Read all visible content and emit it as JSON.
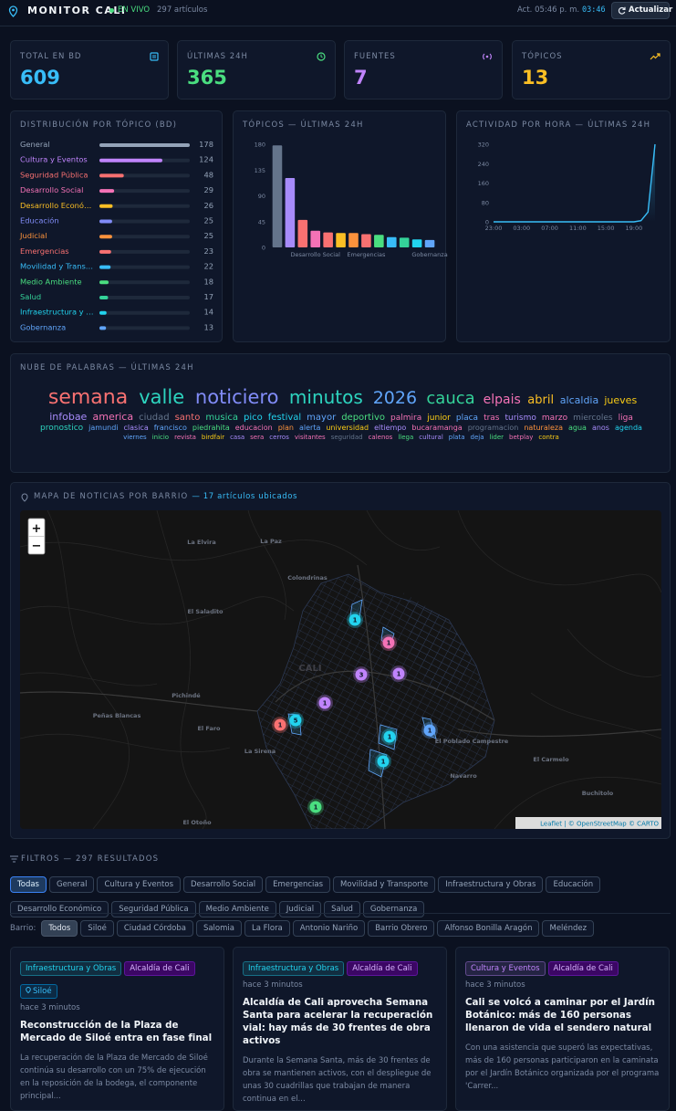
{
  "header": {
    "title": "MONITOR CALI",
    "live": "EN VIVO",
    "count": "297 artículos",
    "updated": "Act. 05:46 p. m.",
    "timer": "03:46",
    "refresh": "Actualizar"
  },
  "kpis": [
    {
      "label": "TOTAL EN BD",
      "value": 609,
      "color": "#38bdf8"
    },
    {
      "label": "ÚLTIMAS 24H",
      "value": 365,
      "color": "#4ade80"
    },
    {
      "label": "FUENTES",
      "value": 7,
      "color": "#c084fc"
    },
    {
      "label": "TÓPICOS",
      "value": 13,
      "color": "#fbbf24"
    }
  ],
  "chart_data": [
    {
      "type": "hbar",
      "title": "DISTRIBUCIÓN POR TÓPICO (BD)",
      "categories": [
        "General",
        "Cultura y Eventos",
        "Seguridad Pública",
        "Desarrollo Social",
        "Desarrollo Econó…",
        "Educación",
        "Judicial",
        "Emergencias",
        "Movilidad y Trans…",
        "Medio Ambiente",
        "Salud",
        "Infraestructura y …",
        "Gobernanza"
      ],
      "values": [
        178,
        124,
        48,
        29,
        26,
        25,
        25,
        23,
        22,
        18,
        17,
        14,
        13
      ],
      "colors": [
        "#94a3b8",
        "#c084fc",
        "#f87171",
        "#f472b6",
        "#fbbf24",
        "#818cf8",
        "#fb923c",
        "#f87171",
        "#38bdf8",
        "#4ade80",
        "#34d399",
        "#22d3ee",
        "#60a5fa"
      ]
    },
    {
      "type": "bar",
      "title": "TÓPICOS — ÚLTIMAS 24H",
      "categories": [
        null,
        null,
        null,
        "Desarrollo Social",
        null,
        null,
        null,
        "Emergencias",
        null,
        null,
        null,
        null,
        "Gobernanza"
      ],
      "values": [
        178,
        121,
        48,
        29,
        26,
        25,
        25,
        23,
        22,
        18,
        17,
        14,
        13
      ],
      "colors": [
        "#64748b",
        "#a78bfa",
        "#f87171",
        "#f472b6",
        "#f87171",
        "#fbbf24",
        "#fb923c",
        "#f87171",
        "#4ade80",
        "#38bdf8",
        "#34d399",
        "#22d3ee",
        "#60a5fa"
      ],
      "ylim": [
        0,
        180
      ],
      "yticks": [
        0,
        45,
        90,
        135,
        180
      ]
    },
    {
      "type": "line",
      "title": "ACTIVIDAD POR HORA — ÚLTIMAS 24H",
      "categories": [
        "23:00",
        null,
        null,
        null,
        "03:00",
        null,
        null,
        null,
        "07:00",
        null,
        null,
        null,
        "11:00",
        null,
        null,
        null,
        "15:00",
        null,
        null,
        null,
        "19:00",
        null,
        null,
        null
      ],
      "values": [
        0,
        0,
        0,
        0,
        0,
        0,
        0,
        0,
        0,
        0,
        0,
        0,
        0,
        0,
        0,
        0,
        0,
        0,
        0,
        0,
        0,
        5,
        40,
        320
      ],
      "color": "#38bdf8",
      "ylim": [
        0,
        320
      ],
      "yticks": [
        0,
        80,
        160,
        240,
        320
      ]
    },
    {
      "type": "wordcloud",
      "title": "NUBE DE PALABRAS — ÚLTIMAS 24H",
      "words": [
        {
          "text": "semana",
          "color": "#f87171",
          "weight": 22
        },
        {
          "text": "valle",
          "color": "#2dd4bf",
          "weight": 21
        },
        {
          "text": "noticiero",
          "color": "#818cf8",
          "weight": 21
        },
        {
          "text": "minutos",
          "color": "#2dd4bf",
          "weight": 20
        },
        {
          "text": "2026",
          "color": "#60a5fa",
          "weight": 19
        },
        {
          "text": "cauca",
          "color": "#34d399",
          "weight": 18
        },
        {
          "text": "elpais",
          "color": "#f472b6",
          "weight": 14
        },
        {
          "text": "abril",
          "color": "#fbbf24",
          "weight": 13
        },
        {
          "text": "alcaldia",
          "color": "#60a5fa",
          "weight": 11
        },
        {
          "text": "jueves",
          "color": "#facc15",
          "weight": 11
        },
        {
          "text": "infobae",
          "color": "#a78bfa",
          "weight": 11
        },
        {
          "text": "america",
          "color": "#f472b6",
          "weight": 11
        },
        {
          "text": "ciudad",
          "color": "#64748b",
          "weight": 10
        },
        {
          "text": "santo",
          "color": "#f87171",
          "weight": 10
        },
        {
          "text": "musica",
          "color": "#34d399",
          "weight": 10
        },
        {
          "text": "pico",
          "color": "#22d3ee",
          "weight": 10
        },
        {
          "text": "festival",
          "color": "#22d3ee",
          "weight": 10
        },
        {
          "text": "mayor",
          "color": "#60a5fa",
          "weight": 10
        },
        {
          "text": "deportivo",
          "color": "#4ade80",
          "weight": 10
        },
        {
          "text": "palmira",
          "color": "#f472b6",
          "weight": 9
        },
        {
          "text": "junior",
          "color": "#facc15",
          "weight": 9
        },
        {
          "text": "placa",
          "color": "#60a5fa",
          "weight": 9
        },
        {
          "text": "tras",
          "color": "#f472b6",
          "weight": 9
        },
        {
          "text": "turismo",
          "color": "#a78bfa",
          "weight": 9
        },
        {
          "text": "marzo",
          "color": "#f472b6",
          "weight": 9
        },
        {
          "text": "miercoles",
          "color": "#64748b",
          "weight": 9
        },
        {
          "text": "liga",
          "color": "#f472b6",
          "weight": 9
        },
        {
          "text": "pronostico",
          "color": "#2dd4bf",
          "weight": 9
        },
        {
          "text": "jamundi",
          "color": "#60a5fa",
          "weight": 8
        },
        {
          "text": "clasica",
          "color": "#a78bfa",
          "weight": 8
        },
        {
          "text": "francisco",
          "color": "#60a5fa",
          "weight": 8
        },
        {
          "text": "piedrahita",
          "color": "#4ade80",
          "weight": 8
        },
        {
          "text": "educacion",
          "color": "#f472b6",
          "weight": 8
        },
        {
          "text": "plan",
          "color": "#fb923c",
          "weight": 8
        },
        {
          "text": "alerta",
          "color": "#60a5fa",
          "weight": 8
        },
        {
          "text": "universidad",
          "color": "#facc15",
          "weight": 8
        },
        {
          "text": "eltiempo",
          "color": "#a78bfa",
          "weight": 8
        },
        {
          "text": "bucaramanga",
          "color": "#f472b6",
          "weight": 8
        },
        {
          "text": "programacion",
          "color": "#64748b",
          "weight": 8
        },
        {
          "text": "naturaleza",
          "color": "#fb923c",
          "weight": 8
        },
        {
          "text": "agua",
          "color": "#4ade80",
          "weight": 8
        },
        {
          "text": "anos",
          "color": "#a78bfa",
          "weight": 8
        },
        {
          "text": "agenda",
          "color": "#22d3ee",
          "weight": 8
        },
        {
          "text": "viernes",
          "color": "#60a5fa",
          "weight": 7
        },
        {
          "text": "inicio",
          "color": "#4ade80",
          "weight": 7
        },
        {
          "text": "revista",
          "color": "#f472b6",
          "weight": 7
        },
        {
          "text": "birdfair",
          "color": "#facc15",
          "weight": 7
        },
        {
          "text": "casa",
          "color": "#a78bfa",
          "weight": 7
        },
        {
          "text": "sera",
          "color": "#f472b6",
          "weight": 7
        },
        {
          "text": "cerros",
          "color": "#a78bfa",
          "weight": 7
        },
        {
          "text": "visitantes",
          "color": "#f472b6",
          "weight": 7
        },
        {
          "text": "seguridad",
          "color": "#64748b",
          "weight": 7
        },
        {
          "text": "calenos",
          "color": "#f472b6",
          "weight": 7
        },
        {
          "text": "llega",
          "color": "#4ade80",
          "weight": 7
        },
        {
          "text": "cultural",
          "color": "#a78bfa",
          "weight": 7
        },
        {
          "text": "plata",
          "color": "#60a5fa",
          "weight": 7
        },
        {
          "text": "deja",
          "color": "#60a5fa",
          "weight": 7
        },
        {
          "text": "lider",
          "color": "#4ade80",
          "weight": 7
        },
        {
          "text": "betplay",
          "color": "#f472b6",
          "weight": 7
        },
        {
          "text": "contra",
          "color": "#facc15",
          "weight": 7
        }
      ]
    }
  ],
  "map": {
    "title": "MAPA DE NOTICIAS POR BARRIO",
    "subtitle": "— 17 artículos ubicados",
    "zoom_in": "+",
    "zoom_out": "−",
    "attribution": "Leaflet | © OpenStreetMap © CARTO",
    "places": [
      "La Elvira",
      "La Paz",
      "Colondrinas",
      "El Saladito",
      "CALI",
      "Pichindé",
      "Peñas Blancas",
      "El Faro",
      "La Sirena",
      "El Poblado Campestre",
      "El Carmelo",
      "Navarro",
      "Buchitolo",
      "El Otoño"
    ],
    "markers": [
      {
        "count": 1,
        "color": "#22d3ee"
      },
      {
        "count": 1,
        "color": "#f472b6"
      },
      {
        "count": 3,
        "color": "#c084fc"
      },
      {
        "count": 1,
        "color": "#c084fc"
      },
      {
        "count": 1,
        "color": "#c084fc"
      },
      {
        "count": 1,
        "color": "#f87171"
      },
      {
        "count": 5,
        "color": "#22d3ee"
      },
      {
        "count": 1,
        "color": "#60a5fa"
      },
      {
        "count": 1,
        "color": "#22d3ee"
      },
      {
        "count": 1,
        "color": "#22d3ee"
      },
      {
        "count": 1,
        "color": "#4ade80"
      }
    ]
  },
  "filters": {
    "title": "FILTROS — 297 RESULTADOS",
    "topics": [
      "Todas",
      "General",
      "Cultura y Eventos",
      "Desarrollo Social",
      "Emergencias",
      "Movilidad y Transporte",
      "Infraestructura y Obras",
      "Educación",
      "Desarrollo Económico",
      "Seguridad Pública",
      "Medio Ambiente",
      "Judicial",
      "Salud",
      "Gobernanza"
    ],
    "barrio_label": "Barrio:",
    "barrios": [
      "Todos",
      "Siloé",
      "Ciudad Córdoba",
      "Salomia",
      "La Flora",
      "Antonio Nariño",
      "Barrio Obrero",
      "Alfonso Bonilla Aragón",
      "Meléndez"
    ]
  },
  "articles": [
    {
      "topic": "Infraestructura y Obras",
      "topic_color": "#22d3ee",
      "source": "Alcaldía de Cali",
      "barrio": "Siloé",
      "time": "hace 3 minutos",
      "title": "Reconstrucción de la Plaza de Mercado de Siloé entra en fase final",
      "excerpt": "La recuperación de la Plaza de Mercado de Siloé continúa su desarrollo con un 75% de ejecución en la reposición de la bodega, el componente principal..."
    },
    {
      "topic": "Infraestructura y Obras",
      "topic_color": "#22d3ee",
      "source": "Alcaldía de Cali",
      "time": "hace 3 minutos",
      "title": "Alcaldía de Cali aprovecha Semana Santa para acelerar la recuperación vial: hay más de 30 frentes de obra activos",
      "excerpt": "Durante la Semana Santa, más de 30 frentes de obra se mantienen activos, con el despliegue de unas 30 cuadrillas que trabajan de manera continua en el..."
    },
    {
      "topic": "Cultura y Eventos",
      "topic_color": "#c084fc",
      "source": "Alcaldía de Cali",
      "time": "hace 3 minutos",
      "title": "Cali se volcó a caminar por el Jardín Botánico: más de 160 personas llenaron de vida el sendero natural",
      "excerpt": "Con una asistencia que superó las expectativas, más de 160 personas participaron en la caminata por el Jardín Botánico organizada por el programa 'Carrer..."
    }
  ]
}
